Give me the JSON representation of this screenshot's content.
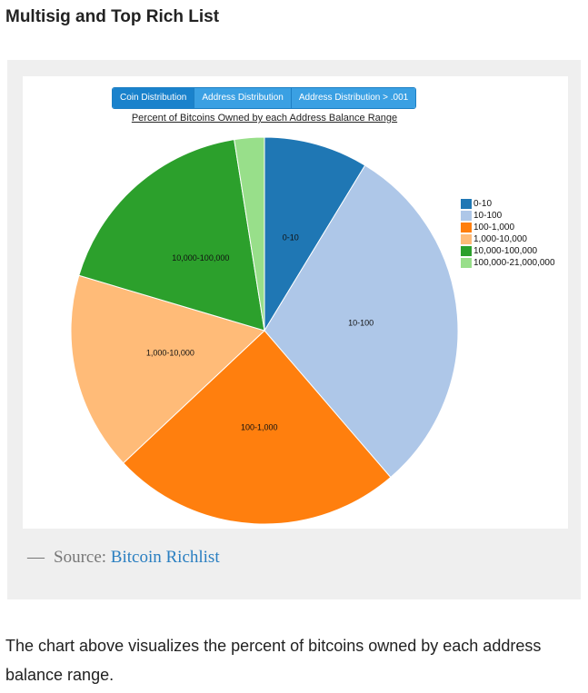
{
  "page": {
    "heading": "Multisig and Top Rich List",
    "caption_dash": "—",
    "caption_prefix": "Source:",
    "caption_link": "Bitcoin Richlist",
    "body_text": "The chart above visualizes the percent of bitcoins owned by each address balance range."
  },
  "tabs": [
    {
      "label": "Coin Distribution",
      "active": true
    },
    {
      "label": "Address Distribution",
      "active": false
    },
    {
      "label": "Address Distribution > .001",
      "active": false
    }
  ],
  "chart_data": {
    "type": "pie",
    "title": "Percent of Bitcoins Owned by each Address Balance Range",
    "legend_position": "right",
    "categories": [
      "0-10",
      "10-100",
      "100-1,000",
      "1,000-10,000",
      "10,000-100,000",
      "100,000-21,000,000"
    ],
    "values": [
      8.7,
      30.0,
      24.3,
      16.6,
      17.9,
      2.5
    ],
    "colors": [
      "#1f77b4",
      "#aec7e8",
      "#ff7f0e",
      "#ffbb78",
      "#2ca02c",
      "#98df8a"
    ],
    "slice_labels": [
      "0-10",
      "10-100",
      "100-1,000",
      "1,000-10,000",
      "10,000-100,000",
      ""
    ]
  }
}
